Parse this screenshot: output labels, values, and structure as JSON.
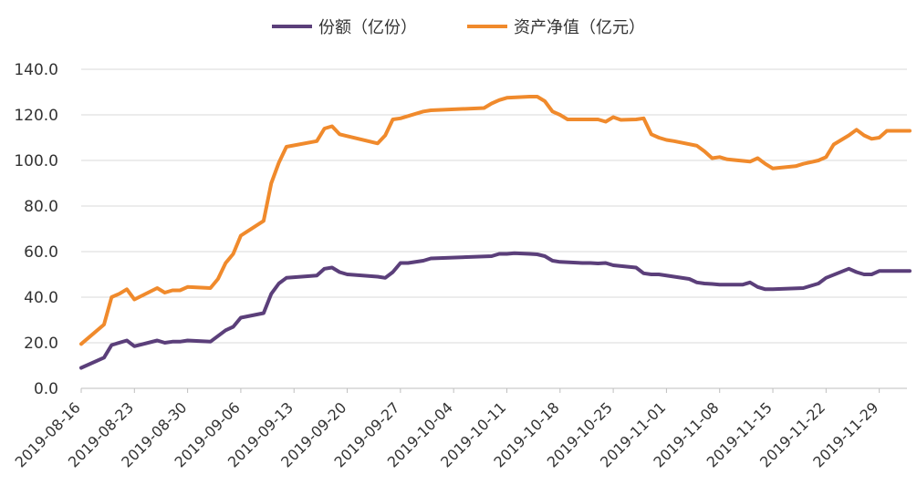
{
  "chart_data": {
    "type": "line",
    "title": "",
    "xlabel": "",
    "ylabel": "",
    "ylim": [
      0,
      140
    ],
    "yticks": [
      "0.0",
      "20.0",
      "40.0",
      "60.0",
      "80.0",
      "100.0",
      "120.0",
      "140.0"
    ],
    "grid": true,
    "legend_position": "top-center",
    "x_range": [
      "2019-08-16",
      "2019-12-03"
    ],
    "xticks": [
      "2019-08-16",
      "2019-08-23",
      "2019-08-30",
      "2019-09-06",
      "2019-09-13",
      "2019-09-20",
      "2019-09-27",
      "2019-10-04",
      "2019-10-11",
      "2019-10-18",
      "2019-10-25",
      "2019-11-01",
      "2019-11-08",
      "2019-11-15",
      "2019-11-22",
      "2019-11-29"
    ],
    "series": [
      {
        "name": "份额（亿份）",
        "color": "#5b3f7a",
        "points": [
          [
            "2019-08-16",
            9.0
          ],
          [
            "2019-08-19",
            13.5
          ],
          [
            "2019-08-20",
            19.0
          ],
          [
            "2019-08-22",
            21.0
          ],
          [
            "2019-08-23",
            18.5
          ],
          [
            "2019-08-26",
            21.0
          ],
          [
            "2019-08-27",
            20.0
          ],
          [
            "2019-08-28",
            20.5
          ],
          [
            "2019-08-29",
            20.5
          ],
          [
            "2019-08-30",
            21.0
          ],
          [
            "2019-09-02",
            20.5
          ],
          [
            "2019-09-04",
            25.5
          ],
          [
            "2019-09-05",
            27.0
          ],
          [
            "2019-09-06",
            31.0
          ],
          [
            "2019-09-09",
            33.0
          ],
          [
            "2019-09-10",
            41.5
          ],
          [
            "2019-09-11",
            46.0
          ],
          [
            "2019-09-12",
            48.5
          ],
          [
            "2019-09-16",
            49.5
          ],
          [
            "2019-09-17",
            52.5
          ],
          [
            "2019-09-18",
            53.0
          ],
          [
            "2019-09-19",
            51.0
          ],
          [
            "2019-09-20",
            50.0
          ],
          [
            "2019-09-24",
            49.0
          ],
          [
            "2019-09-25",
            48.5
          ],
          [
            "2019-09-26",
            51.0
          ],
          [
            "2019-09-27",
            55.0
          ],
          [
            "2019-09-28",
            55.0
          ],
          [
            "2019-09-30",
            56.0
          ],
          [
            "2019-10-01",
            57.0
          ],
          [
            "2019-10-09",
            58.0
          ],
          [
            "2019-10-10",
            59.0
          ],
          [
            "2019-10-11",
            59.0
          ],
          [
            "2019-10-12",
            59.3
          ],
          [
            "2019-10-14",
            59.0
          ],
          [
            "2019-10-15",
            58.8
          ],
          [
            "2019-10-16",
            58.0
          ],
          [
            "2019-10-17",
            56.0
          ],
          [
            "2019-10-18",
            55.5
          ],
          [
            "2019-10-21",
            55.0
          ],
          [
            "2019-10-22",
            55.0
          ],
          [
            "2019-10-23",
            54.8
          ],
          [
            "2019-10-24",
            55.0
          ],
          [
            "2019-10-25",
            54.0
          ],
          [
            "2019-10-28",
            53.0
          ],
          [
            "2019-10-29",
            50.5
          ],
          [
            "2019-10-30",
            50.0
          ],
          [
            "2019-10-31",
            50.0
          ],
          [
            "2019-11-04",
            48.0
          ],
          [
            "2019-11-05",
            46.5
          ],
          [
            "2019-11-06",
            46.0
          ],
          [
            "2019-11-07",
            45.8
          ],
          [
            "2019-11-08",
            45.5
          ],
          [
            "2019-11-11",
            45.5
          ],
          [
            "2019-11-12",
            46.5
          ],
          [
            "2019-11-13",
            44.5
          ],
          [
            "2019-11-14",
            43.5
          ],
          [
            "2019-11-15",
            43.5
          ],
          [
            "2019-11-19",
            44.0
          ],
          [
            "2019-11-20",
            45.0
          ],
          [
            "2019-11-21",
            46.0
          ],
          [
            "2019-11-22",
            48.5
          ],
          [
            "2019-11-25",
            52.5
          ],
          [
            "2019-11-26",
            51.0
          ],
          [
            "2019-11-27",
            50.0
          ],
          [
            "2019-11-28",
            50.0
          ],
          [
            "2019-11-29",
            51.5
          ],
          [
            "2019-12-03",
            51.5
          ]
        ]
      },
      {
        "name": "资产净值（亿元）",
        "color": "#f08a2c",
        "points": [
          [
            "2019-08-16",
            19.5
          ],
          [
            "2019-08-19",
            28.0
          ],
          [
            "2019-08-20",
            40.0
          ],
          [
            "2019-08-21",
            41.5
          ],
          [
            "2019-08-22",
            43.5
          ],
          [
            "2019-08-23",
            39.0
          ],
          [
            "2019-08-26",
            44.0
          ],
          [
            "2019-08-27",
            42.0
          ],
          [
            "2019-08-28",
            43.0
          ],
          [
            "2019-08-29",
            43.0
          ],
          [
            "2019-08-30",
            44.5
          ],
          [
            "2019-09-02",
            44.0
          ],
          [
            "2019-09-03",
            48.0
          ],
          [
            "2019-09-04",
            55.0
          ],
          [
            "2019-09-05",
            59.0
          ],
          [
            "2019-09-06",
            67.0
          ],
          [
            "2019-09-09",
            73.5
          ],
          [
            "2019-09-10",
            90.0
          ],
          [
            "2019-09-11",
            99.0
          ],
          [
            "2019-09-12",
            106.0
          ],
          [
            "2019-09-16",
            108.5
          ],
          [
            "2019-09-17",
            114.0
          ],
          [
            "2019-09-18",
            115.0
          ],
          [
            "2019-09-19",
            111.5
          ],
          [
            "2019-09-24",
            107.5
          ],
          [
            "2019-09-25",
            111.0
          ],
          [
            "2019-09-26",
            118.0
          ],
          [
            "2019-09-27",
            118.5
          ],
          [
            "2019-09-30",
            121.5
          ],
          [
            "2019-10-01",
            122.0
          ],
          [
            "2019-10-08",
            123.0
          ],
          [
            "2019-10-09",
            125.0
          ],
          [
            "2019-10-10",
            126.5
          ],
          [
            "2019-10-11",
            127.5
          ],
          [
            "2019-10-14",
            128.0
          ],
          [
            "2019-10-15",
            128.0
          ],
          [
            "2019-10-16",
            126.0
          ],
          [
            "2019-10-17",
            121.5
          ],
          [
            "2019-10-18",
            120.0
          ],
          [
            "2019-10-19",
            118.0
          ],
          [
            "2019-10-23",
            118.0
          ],
          [
            "2019-10-24",
            117.0
          ],
          [
            "2019-10-25",
            119.0
          ],
          [
            "2019-10-26",
            117.8
          ],
          [
            "2019-10-28",
            118.0
          ],
          [
            "2019-10-29",
            118.5
          ],
          [
            "2019-10-30",
            111.5
          ],
          [
            "2019-10-31",
            110.0
          ],
          [
            "2019-11-01",
            109.0
          ],
          [
            "2019-11-02",
            108.5
          ],
          [
            "2019-11-05",
            106.5
          ],
          [
            "2019-11-06",
            104.0
          ],
          [
            "2019-11-07",
            101.0
          ],
          [
            "2019-11-08",
            101.5
          ],
          [
            "2019-11-09",
            100.5
          ],
          [
            "2019-11-12",
            99.5
          ],
          [
            "2019-11-13",
            101.0
          ],
          [
            "2019-11-14",
            98.5
          ],
          [
            "2019-11-15",
            96.5
          ],
          [
            "2019-11-18",
            97.5
          ],
          [
            "2019-11-19",
            98.5
          ],
          [
            "2019-11-21",
            100.0
          ],
          [
            "2019-11-22",
            101.5
          ],
          [
            "2019-11-23",
            107.0
          ],
          [
            "2019-11-25",
            111.0
          ],
          [
            "2019-11-26",
            113.5
          ],
          [
            "2019-11-27",
            111.0
          ],
          [
            "2019-11-28",
            109.5
          ],
          [
            "2019-11-29",
            110.0
          ],
          [
            "2019-11-30",
            113.0
          ],
          [
            "2019-12-03",
            113.0
          ]
        ]
      }
    ]
  }
}
